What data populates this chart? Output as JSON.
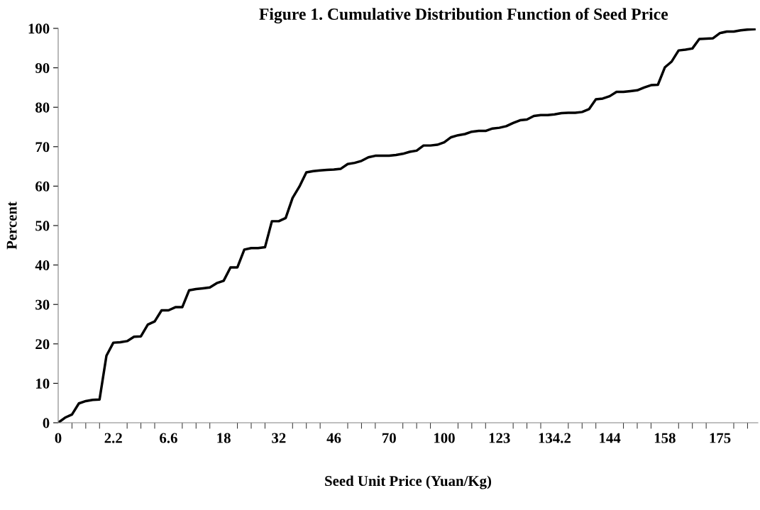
{
  "chart_data": {
    "type": "line",
    "title": "Figure 1. Cumulative Distribution Function of Seed Price",
    "xlabel": "Seed Unit Price (Yuan/Kg)",
    "ylabel": "Percent",
    "categories": [
      "0",
      null,
      null,
      null,
      null,
      null,
      null,
      null,
      "2.2",
      null,
      null,
      null,
      null,
      null,
      null,
      null,
      "6.6",
      null,
      null,
      null,
      null,
      null,
      null,
      null,
      "18",
      null,
      null,
      null,
      null,
      null,
      null,
      null,
      "32",
      null,
      null,
      null,
      null,
      null,
      null,
      null,
      "46",
      null,
      null,
      null,
      null,
      null,
      null,
      null,
      "70",
      null,
      null,
      null,
      null,
      null,
      null,
      null,
      "100",
      null,
      null,
      null,
      null,
      null,
      null,
      null,
      "123",
      null,
      null,
      null,
      null,
      null,
      null,
      null,
      "134.2",
      null,
      null,
      null,
      null,
      null,
      null,
      null,
      "144",
      null,
      null,
      null,
      null,
      null,
      null,
      null,
      "158",
      null,
      null,
      null,
      null,
      null,
      null,
      null,
      "175",
      null,
      null,
      null,
      null,
      null
    ],
    "series": [
      {
        "color": "#000000",
        "values": [
          0,
          1.3,
          2.1,
          4.9,
          5.5,
          5.8,
          5.9,
          17.0,
          20.3,
          20.4,
          20.7,
          21.8,
          21.9,
          24.9,
          25.7,
          28.5,
          28.5,
          29.3,
          29.3,
          33.6,
          33.9,
          34.1,
          34.3,
          35.4,
          36.0,
          39.4,
          39.4,
          43.9,
          44.3,
          44.3,
          44.5,
          51.1,
          51.1,
          51.9,
          57.0,
          59.9,
          63.5,
          63.8,
          64.0,
          64.1,
          64.2,
          64.4,
          65.6,
          65.9,
          66.4,
          67.3,
          67.7,
          67.7,
          67.7,
          67.9,
          68.2,
          68.7,
          69.0,
          70.3,
          70.3,
          70.5,
          71.1,
          72.4,
          72.9,
          73.2,
          73.8,
          74.0,
          74.0,
          74.6,
          74.8,
          75.2,
          76.0,
          76.7,
          76.9,
          77.8,
          78.0,
          78.0,
          78.2,
          78.5,
          78.6,
          78.6,
          78.8,
          79.5,
          82.0,
          82.2,
          82.8,
          83.9,
          83.9,
          84.1,
          84.3,
          85.0,
          85.6,
          85.7,
          90.1,
          91.6,
          94.4,
          94.6,
          94.9,
          97.3,
          97.4,
          97.5,
          98.8,
          99.2,
          99.2,
          99.5,
          99.7,
          99.8
        ]
      }
    ],
    "ylim": [
      0,
      100
    ],
    "yticks": [
      0,
      10,
      20,
      30,
      40,
      50,
      60,
      70,
      80,
      90,
      100
    ],
    "grid": false,
    "legend": false,
    "marker": "none",
    "line_style": "solid"
  }
}
